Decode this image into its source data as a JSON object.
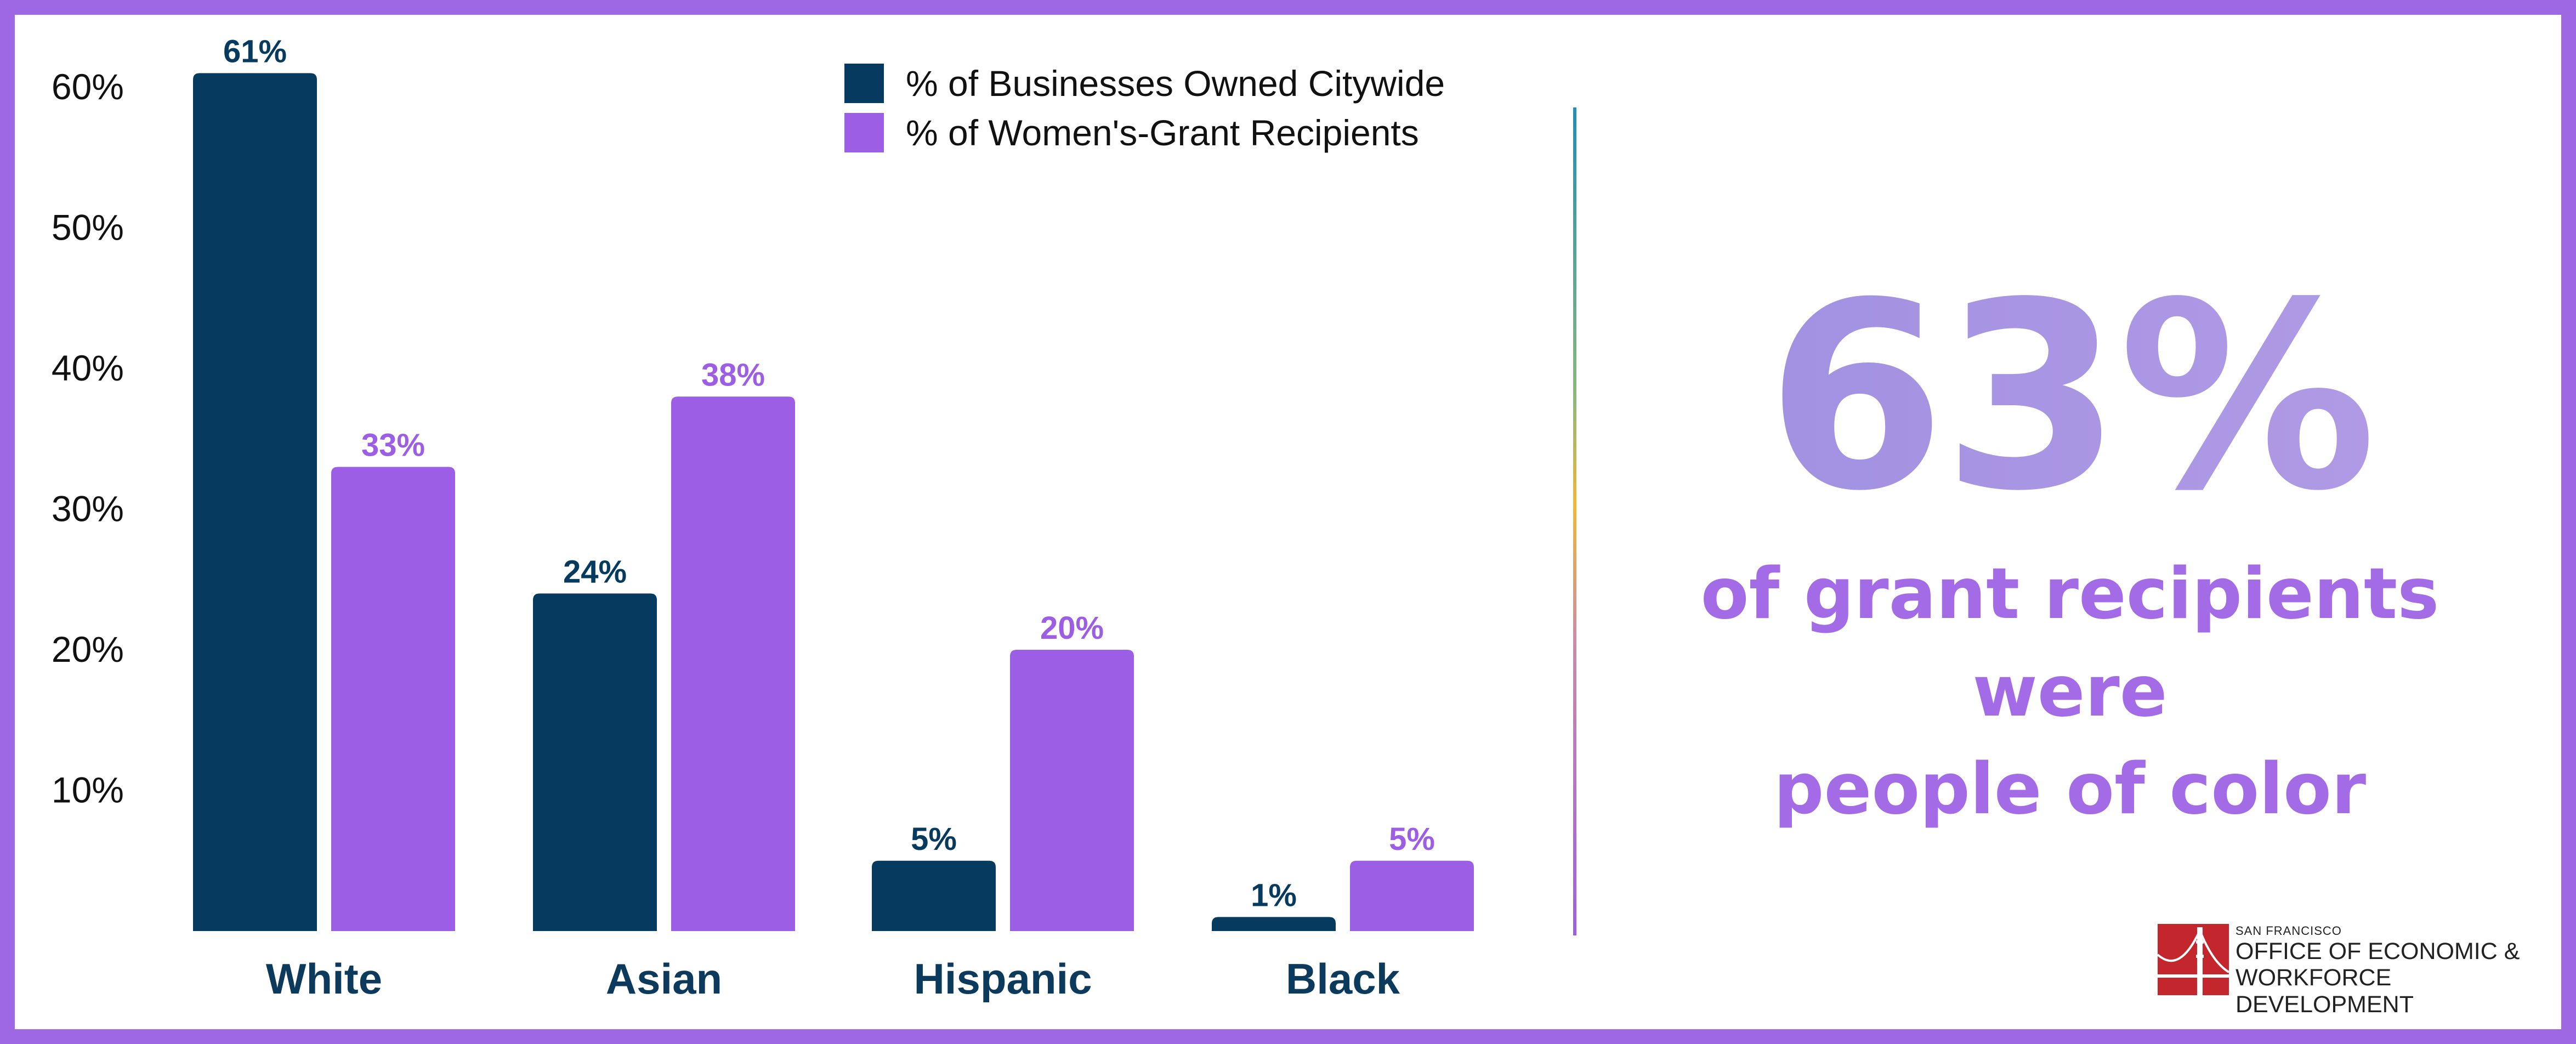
{
  "chart_data": {
    "type": "bar",
    "categories": [
      "White",
      "Asian",
      "Hispanic",
      "Black"
    ],
    "series": [
      {
        "name": "% of Businesses Owned Citywide",
        "values": [
          61,
          24,
          5,
          1
        ],
        "labels": [
          "61%",
          "24%",
          "5%",
          "1%"
        ],
        "color": "#063a5e"
      },
      {
        "name": "% of Women's-Grant Recipients",
        "values": [
          33,
          38,
          20,
          5
        ],
        "labels": [
          "33%",
          "38%",
          "20%",
          "5%"
        ],
        "color": "#9d5ee6"
      }
    ],
    "title": "",
    "xlabel": "",
    "ylabel": "",
    "ylim": [
      0,
      65
    ],
    "yticks": [
      10,
      20,
      30,
      40,
      50,
      60
    ],
    "ytick_labels": [
      "10%",
      "20%",
      "30%",
      "40%",
      "50%",
      "60%"
    ],
    "grid": false,
    "legend_position": "top"
  },
  "callout": {
    "stat": "63%",
    "caption_line1": "of grant recipients were",
    "caption_line2": "people of color"
  },
  "logo": {
    "small_text": "SAN FRANCISCO",
    "line1": "OFFICE OF ECONOMIC &",
    "line2": "WORKFORCE DEVELOPMENT"
  },
  "colors": {
    "frame": "#9e67e4",
    "navy": "#063a5e",
    "purple": "#9d5ee6",
    "logo_red": "#c4262e"
  }
}
